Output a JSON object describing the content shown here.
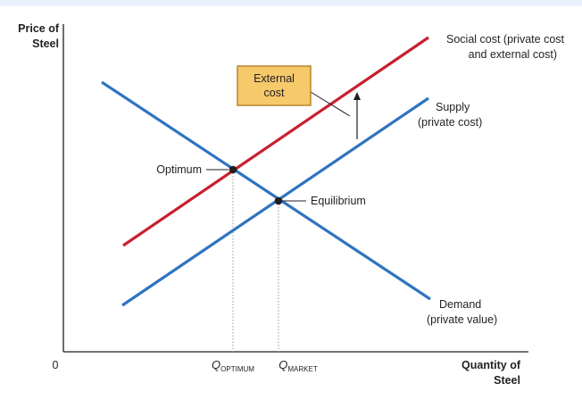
{
  "colors": {
    "top_band": "#e8f1fb",
    "axis": "#231f20",
    "demand": "#2f74c0",
    "supply": "#2f74c0",
    "social_cost": "#c8202f",
    "box_fill": "#f6c96b",
    "box_stroke": "#b8862b",
    "text": "#231f20",
    "guide": "#9a9a9a"
  },
  "axes": {
    "y_label": [
      "Price of",
      "Steel"
    ],
    "x_label": [
      "Quantity of",
      "Steel"
    ],
    "origin_label": "0",
    "q_optimum": {
      "main": "Q",
      "sub": "OPTIMUM"
    },
    "q_market": {
      "main": "Q",
      "sub": "MARKET"
    }
  },
  "curves": {
    "social_cost": [
      "Social cost (private cost",
      "and external cost)"
    ],
    "supply": [
      "Supply",
      "(private cost)"
    ],
    "demand": [
      "Demand",
      "(private value)"
    ]
  },
  "points": {
    "optimum": "Optimum",
    "equilibrium": "Equilibrium"
  },
  "external_cost_box": [
    "External",
    "cost"
  ]
}
